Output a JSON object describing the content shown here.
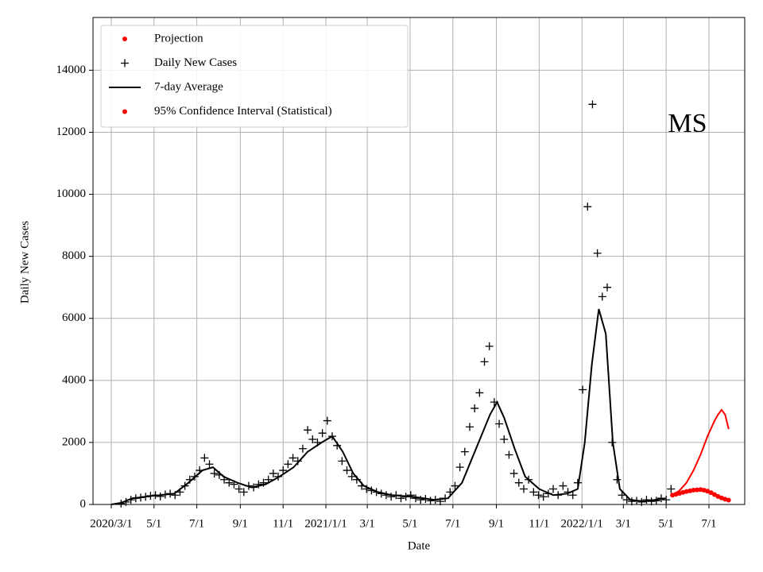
{
  "chart_data": {
    "type": "line",
    "annotation": "MS",
    "x_label": "Date",
    "y_label": "Daily New Cases",
    "xlim": [
      -26,
      903
    ],
    "ylim": [
      0,
      15700
    ],
    "grid": true,
    "legend": "upper left",
    "xticks": [
      {
        "value": 0,
        "label": "2020/3/1"
      },
      {
        "value": 61,
        "label": "5/1"
      },
      {
        "value": 122,
        "label": "7/1"
      },
      {
        "value": 184,
        "label": "9/1"
      },
      {
        "value": 245,
        "label": "11/1"
      },
      {
        "value": 306,
        "label": "2021/1/1"
      },
      {
        "value": 365,
        "label": "3/1"
      },
      {
        "value": 426,
        "label": "5/1"
      },
      {
        "value": 487,
        "label": "7/1"
      },
      {
        "value": 549,
        "label": "9/1"
      },
      {
        "value": 610,
        "label": "11/1"
      },
      {
        "value": 671,
        "label": "2022/1/1"
      },
      {
        "value": 730,
        "label": "3/1"
      },
      {
        "value": 791,
        "label": "5/1"
      },
      {
        "value": 852,
        "label": "7/1"
      }
    ],
    "yticks": [
      0,
      2000,
      4000,
      6000,
      8000,
      10000,
      12000,
      14000
    ],
    "series": [
      {
        "name": "Projection",
        "color": "#ff0000",
        "marker": "dot",
        "x": [
          800,
          805,
          810,
          815,
          820,
          825,
          830,
          835,
          840,
          845,
          850,
          855,
          860,
          865,
          870,
          875,
          880
        ],
        "values": [
          300,
          330,
          360,
          390,
          420,
          440,
          460,
          470,
          480,
          460,
          430,
          380,
          320,
          260,
          210,
          170,
          140
        ]
      },
      {
        "name": "Daily New Cases",
        "color": "#000000",
        "marker": "plus",
        "x": [
          14,
          21,
          28,
          35,
          42,
          49,
          56,
          63,
          70,
          77,
          84,
          91,
          98,
          105,
          112,
          119,
          126,
          133,
          140,
          147,
          154,
          161,
          168,
          175,
          182,
          189,
          196,
          203,
          210,
          217,
          224,
          231,
          238,
          245,
          252,
          259,
          266,
          273,
          280,
          287,
          294,
          301,
          308,
          315,
          322,
          329,
          336,
          343,
          350,
          357,
          364,
          371,
          378,
          385,
          392,
          399,
          406,
          413,
          420,
          427,
          434,
          441,
          448,
          455,
          462,
          469,
          476,
          483,
          490,
          497,
          504,
          511,
          518,
          525,
          532,
          539,
          546,
          553,
          560,
          567,
          574,
          581,
          588,
          595,
          602,
          609,
          616,
          623,
          630,
          637,
          644,
          651,
          658,
          665,
          672,
          679,
          686,
          693,
          700,
          707,
          714,
          721,
          728,
          735,
          742,
          749,
          756,
          763,
          770,
          777,
          784,
          791,
          798
        ],
        "values": [
          30,
          80,
          150,
          200,
          220,
          250,
          280,
          300,
          260,
          320,
          350,
          300,
          400,
          600,
          800,
          900,
          1100,
          1500,
          1300,
          1000,
          950,
          800,
          700,
          650,
          500,
          400,
          600,
          550,
          650,
          700,
          800,
          1000,
          900,
          1100,
          1300,
          1500,
          1400,
          1800,
          2400,
          2100,
          2000,
          2300,
          2700,
          2200,
          1900,
          1400,
          1100,
          900,
          800,
          600,
          500,
          450,
          400,
          350,
          300,
          250,
          300,
          200,
          250,
          300,
          200,
          150,
          180,
          120,
          150,
          100,
          200,
          400,
          600,
          1200,
          1700,
          2500,
          3100,
          3600,
          4600,
          5100,
          3300,
          2600,
          2100,
          1600,
          1000,
          700,
          500,
          800,
          400,
          300,
          250,
          350,
          500,
          300,
          600,
          400,
          300,
          700,
          3700,
          9600,
          12900,
          8100,
          6700,
          7000,
          2000,
          800,
          300,
          150,
          100,
          120,
          80,
          150,
          100,
          120,
          200,
          150,
          500
        ]
      },
      {
        "name": "7-day Average",
        "color": "#000000",
        "marker": "line",
        "x": [
          0,
          14,
          30,
          60,
          90,
          110,
          130,
          145,
          160,
          180,
          200,
          220,
          240,
          260,
          280,
          300,
          315,
          330,
          345,
          360,
          380,
          400,
          430,
          460,
          480,
          500,
          520,
          540,
          550,
          560,
          575,
          590,
          610,
          630,
          650,
          665,
          675,
          685,
          695,
          705,
          715,
          725,
          740,
          760,
          790
        ],
        "values": [
          0,
          50,
          200,
          280,
          350,
          700,
          1100,
          1200,
          900,
          700,
          550,
          650,
          900,
          1200,
          1700,
          2000,
          2200,
          1700,
          1000,
          600,
          400,
          300,
          250,
          150,
          200,
          700,
          1800,
          2900,
          3300,
          2800,
          1800,
          900,
          500,
          300,
          350,
          500,
          2000,
          4500,
          6300,
          5500,
          2000,
          500,
          150,
          100,
          200
        ]
      },
      {
        "name": "95% Confidence Interval (Statistical)",
        "color": "#ff0000",
        "marker": "dot-line",
        "x": [
          800,
          810,
          820,
          830,
          840,
          850,
          860,
          865,
          870,
          875,
          880
        ],
        "values": [
          300,
          450,
          700,
          1100,
          1600,
          2200,
          2700,
          2900,
          3050,
          2900,
          2450
        ]
      }
    ]
  }
}
